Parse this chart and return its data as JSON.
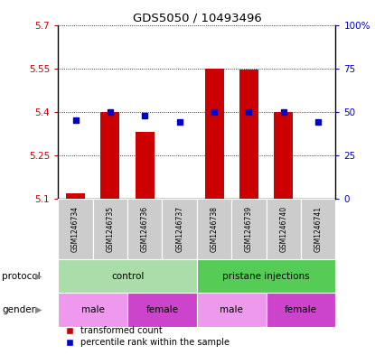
{
  "title": "GDS5050 / 10493496",
  "samples": [
    "GSM1246734",
    "GSM1246735",
    "GSM1246736",
    "GSM1246737",
    "GSM1246738",
    "GSM1246739",
    "GSM1246740",
    "GSM1246741"
  ],
  "red_values": [
    5.12,
    5.4,
    5.33,
    5.1,
    5.55,
    5.545,
    5.4,
    5.1
  ],
  "blue_values_pct": [
    45,
    50,
    48,
    44,
    50,
    50,
    50,
    44
  ],
  "ylim": [
    5.1,
    5.7
  ],
  "yticks_left": [
    5.1,
    5.25,
    5.4,
    5.55,
    5.7
  ],
  "yticks_right": [
    0,
    25,
    50,
    75,
    100
  ],
  "ytick_labels_left": [
    "5.1",
    "5.25",
    "5.4",
    "5.55",
    "5.7"
  ],
  "ytick_labels_right": [
    "0",
    "25",
    "50",
    "75",
    "100%"
  ],
  "base_value": 5.1,
  "bar_color": "#cc0000",
  "dot_color": "#0000cc",
  "protocol_groups": [
    {
      "label": "control",
      "start": 0,
      "end": 4,
      "color": "#aaddaa"
    },
    {
      "label": "pristane injections",
      "start": 4,
      "end": 8,
      "color": "#55cc55"
    }
  ],
  "gender_groups": [
    {
      "label": "male",
      "start": 0,
      "end": 2,
      "color": "#ee99ee"
    },
    {
      "label": "female",
      "start": 2,
      "end": 4,
      "color": "#cc44cc"
    },
    {
      "label": "male",
      "start": 4,
      "end": 6,
      "color": "#ee99ee"
    },
    {
      "label": "female",
      "start": 6,
      "end": 8,
      "color": "#cc44cc"
    }
  ],
  "bar_width": 0.55,
  "sample_col_bg": "#cccccc",
  "left_label_color": "#cc0000",
  "right_label_color": "#0000cc",
  "protocol_label": "protocol",
  "gender_label": "gender",
  "legend_red": "transformed count",
  "legend_blue": "percentile rank within the sample",
  "fig_width": 4.15,
  "fig_height": 3.93,
  "dpi": 100
}
